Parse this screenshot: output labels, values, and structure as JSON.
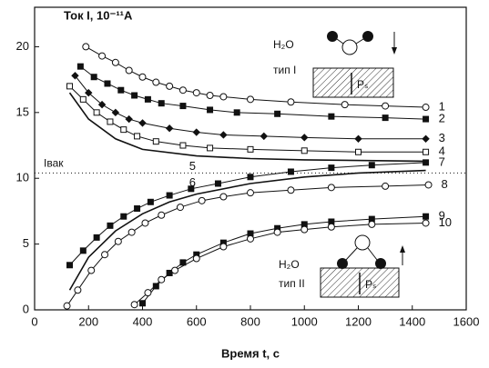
{
  "chart_data": {
    "type": "line",
    "y_label": "Ток I, 10⁻¹¹A",
    "x_label": "Время t, с",
    "xlim": [
      0,
      1600
    ],
    "xticks": [
      0,
      200,
      400,
      600,
      800,
      1000,
      1200,
      1400,
      1600
    ],
    "ylim": [
      0,
      23
    ],
    "yticks": [
      0,
      5,
      10,
      15,
      20
    ],
    "color": "#111111",
    "reference_line": {
      "label": "Iвак",
      "value": 10.4
    },
    "annotations": [
      "H₂O",
      "тип I",
      "Pₛ",
      "H₂O",
      "тип II",
      "Pₛ"
    ],
    "series": [
      {
        "name": "1",
        "marker": "circle-open",
        "x": [
          190,
          250,
          300,
          350,
          400,
          450,
          500,
          550,
          600,
          650,
          700,
          800,
          950,
          1150,
          1300,
          1450
        ],
        "values": [
          20,
          19.3,
          18.8,
          18.2,
          17.7,
          17.3,
          17,
          16.7,
          16.5,
          16.3,
          16.2,
          16,
          15.8,
          15.6,
          15.5,
          15.4
        ]
      },
      {
        "name": "2",
        "marker": "square-filled",
        "x": [
          170,
          220,
          270,
          320,
          370,
          420,
          470,
          550,
          650,
          750,
          900,
          1100,
          1300,
          1450
        ],
        "values": [
          18.5,
          17.7,
          17.2,
          16.7,
          16.3,
          16,
          15.7,
          15.5,
          15.2,
          15,
          14.9,
          14.7,
          14.6,
          14.5
        ]
      },
      {
        "name": "3",
        "marker": "diamond-filled",
        "x": [
          150,
          200,
          250,
          300,
          350,
          400,
          500,
          600,
          700,
          850,
          1000,
          1200,
          1450
        ],
        "values": [
          17.8,
          16.5,
          15.6,
          15,
          14.5,
          14.2,
          13.8,
          13.5,
          13.3,
          13.2,
          13.1,
          13,
          13
        ]
      },
      {
        "name": "4",
        "marker": "square-open",
        "x": [
          130,
          180,
          230,
          280,
          330,
          380,
          450,
          550,
          650,
          800,
          1000,
          1200,
          1450
        ],
        "values": [
          17,
          16,
          15,
          14.3,
          13.7,
          13.2,
          12.8,
          12.5,
          12.3,
          12.2,
          12.1,
          12,
          12
        ]
      },
      {
        "name": "5",
        "marker": "none",
        "x": [
          130,
          200,
          300,
          400,
          600,
          800,
          1000,
          1450
        ],
        "values": [
          16.5,
          14.5,
          13,
          12.2,
          11.7,
          11.5,
          11.4,
          11.3
        ]
      },
      {
        "name": "6",
        "marker": "none",
        "x": [
          130,
          200,
          300,
          400,
          500,
          600,
          800,
          1000,
          1200,
          1450
        ],
        "values": [
          1.5,
          4,
          6,
          7.3,
          8.2,
          8.8,
          9.6,
          10.1,
          10.4,
          10.6
        ]
      },
      {
        "name": "7",
        "marker": "square-filled",
        "x": [
          130,
          180,
          230,
          280,
          330,
          380,
          430,
          500,
          580,
          680,
          800,
          950,
          1100,
          1250,
          1450
        ],
        "values": [
          3.4,
          4.5,
          5.5,
          6.4,
          7.1,
          7.7,
          8.2,
          8.7,
          9.2,
          9.6,
          10.1,
          10.5,
          10.8,
          11,
          11.2
        ]
      },
      {
        "name": "8",
        "marker": "circle-open",
        "x": [
          120,
          160,
          210,
          260,
          310,
          360,
          410,
          470,
          540,
          620,
          700,
          800,
          950,
          1100,
          1300,
          1460
        ],
        "values": [
          0.3,
          1.5,
          3,
          4.2,
          5.2,
          5.9,
          6.6,
          7.2,
          7.8,
          8.3,
          8.6,
          8.9,
          9.1,
          9.3,
          9.4,
          9.5
        ]
      },
      {
        "name": "9",
        "marker": "square-filled",
        "x": [
          400,
          450,
          500,
          550,
          600,
          700,
          800,
          900,
          1000,
          1100,
          1250,
          1450
        ],
        "values": [
          0.5,
          1.8,
          2.8,
          3.6,
          4.2,
          5.1,
          5.8,
          6.2,
          6.5,
          6.7,
          6.9,
          7.1
        ]
      },
      {
        "name": "10",
        "marker": "circle-open",
        "x": [
          370,
          420,
          470,
          520,
          600,
          700,
          800,
          900,
          1000,
          1100,
          1250,
          1450
        ],
        "values": [
          0.4,
          1.3,
          2.3,
          3,
          3.9,
          4.8,
          5.4,
          5.9,
          6.1,
          6.3,
          6.5,
          6.6
        ]
      }
    ]
  }
}
